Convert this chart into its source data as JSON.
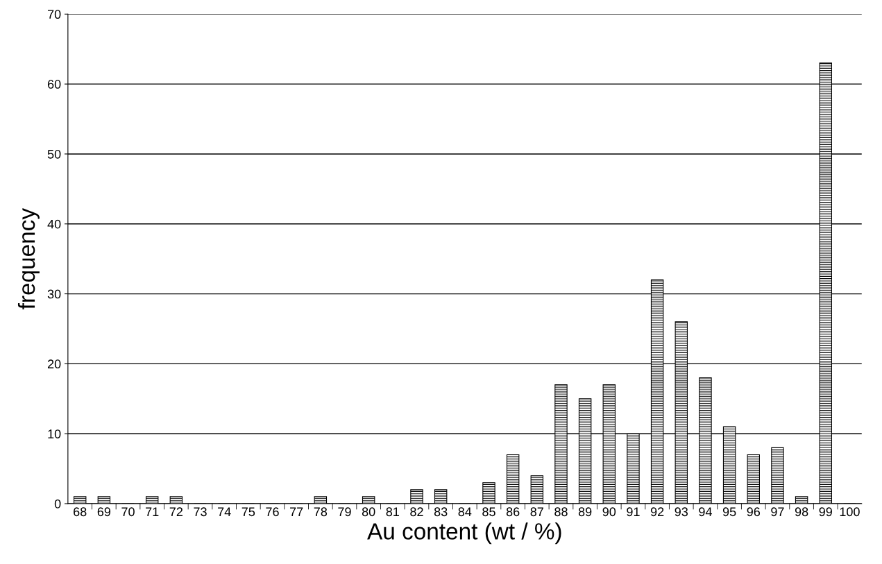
{
  "chart_data": {
    "type": "bar",
    "xlabel": "Au content (wt / %)",
    "ylabel": "frequency",
    "categories": [
      "68",
      "69",
      "70",
      "71",
      "72",
      "73",
      "74",
      "75",
      "76",
      "77",
      "78",
      "79",
      "80",
      "81",
      "82",
      "83",
      "84",
      "85",
      "86",
      "87",
      "88",
      "89",
      "90",
      "91",
      "92",
      "93",
      "94",
      "95",
      "96",
      "97",
      "98",
      "99",
      "100"
    ],
    "values": [
      1,
      1,
      0,
      1,
      1,
      0,
      0,
      0,
      0,
      0,
      1,
      0,
      1,
      0,
      2,
      2,
      0,
      3,
      7,
      4,
      17,
      15,
      17,
      10,
      32,
      26,
      18,
      11,
      7,
      8,
      1,
      63,
      0
    ],
    "color": "#000000",
    "ylim": [
      0,
      70
    ],
    "yticks": [
      0,
      10,
      20,
      30,
      40,
      50,
      60,
      70
    ],
    "grid": "y"
  }
}
